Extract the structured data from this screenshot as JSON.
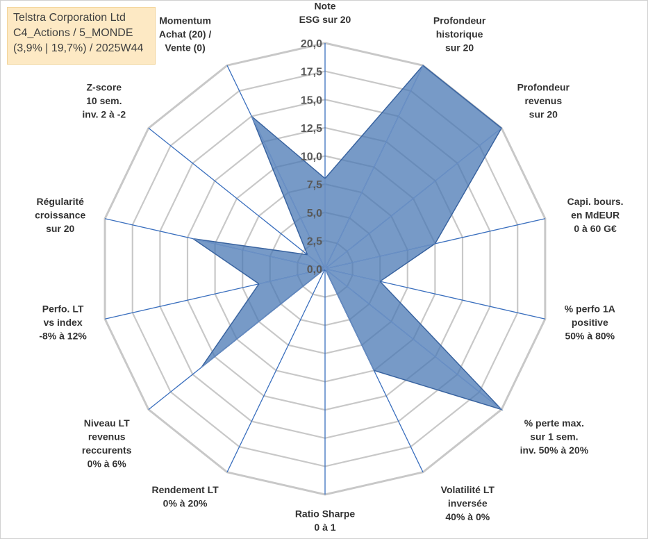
{
  "title_box": {
    "line1": "Telstra Corporation Ltd",
    "line2": "C4_Actions / 5_MONDE",
    "line3": "(3,9% | 19,7%) / 2025W44"
  },
  "chart_data": {
    "type": "radar",
    "rlim": [
      0,
      20
    ],
    "ticks": [
      "0,0",
      "2,5",
      "5,0",
      "7,5",
      "10,0",
      "12,5",
      "15,0",
      "17,5",
      "20,0"
    ],
    "grid": true,
    "axes": [
      {
        "label": [
          "Note",
          "ESG sur 20"
        ],
        "value": 8.0
      },
      {
        "label": [
          "Profondeur",
          "historique",
          "sur 20"
        ],
        "value": 20.0
      },
      {
        "label": [
          "Profondeur",
          "revenus",
          "sur 20"
        ],
        "value": 20.0
      },
      {
        "label": [
          "Capi. bours.",
          "en MdEUR",
          "0 à 60 G€"
        ],
        "value": 10.0
      },
      {
        "label": [
          "% perfo 1A",
          "positive",
          "50% à 80%"
        ],
        "value": 5.0
      },
      {
        "label": [
          "% perte max.",
          "sur 1 sem.",
          "inv. 50% à 20%"
        ],
        "value": 20.0
      },
      {
        "label": [
          "Volatilité LT",
          "inversée",
          "40% à 0%"
        ],
        "value": 10.0
      },
      {
        "label": [
          "Ratio Sharpe",
          "0 à 1"
        ],
        "value": 0.0
      },
      {
        "label": [
          "Rendement LT",
          "0% à 20%"
        ],
        "value": 0.0
      },
      {
        "label": [
          "Niveau LT",
          "revenus",
          "reccurents",
          "0% à 6%"
        ],
        "value": 14.0
      },
      {
        "label": [
          "Perfo. LT",
          "vs index",
          "-8% à 12%"
        ],
        "value": 6.0
      },
      {
        "label": [
          "Régularité",
          "croissance",
          "sur 20"
        ],
        "value": 12.0
      },
      {
        "label": [
          "Z-score",
          "10 sem.",
          "inv. 2 à -2"
        ],
        "value": 2.0
      },
      {
        "label": [
          "Momentum",
          "Achat (20) /",
          "Vente (0)"
        ],
        "value": 15.0
      }
    ],
    "colors": {
      "fill": "#4a78b4",
      "stroke": "#3a64a0",
      "grid": "#c8c8c8",
      "spoke": "#3a6fbe"
    }
  }
}
